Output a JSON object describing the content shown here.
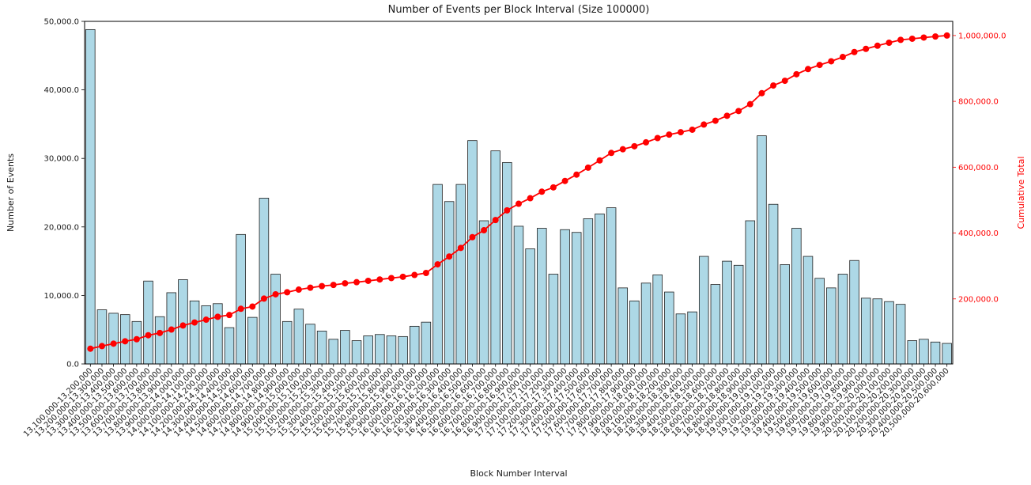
{
  "colors": {
    "bar_fill": "#ADD8E6",
    "bar_edge": "#1f1f1f",
    "line": "#FF0000",
    "right_axis": "#FF0000",
    "text": "#1a1a1a",
    "spine": "#000000",
    "background": "#ffffff"
  },
  "chart_data": {
    "type": "bar+line",
    "title": "Number of Events per Block Interval (Size 100000)",
    "xlabel": "Block Number Interval",
    "ylabel_left": "Number of Events",
    "ylabel_right": "Cumulative Total",
    "y_left_lim": [
      0,
      50000
    ],
    "y_right_lim": [
      0,
      1043000
    ],
    "grid": false,
    "legend": "none",
    "y_left_tick_labels": [
      "0.0",
      "10,000.0",
      "20,000.0",
      "30,000.0",
      "40,000.0",
      "50,000.0"
    ],
    "y_right_tick_labels": [
      "200,000.0",
      "400,000.0",
      "600,000.0",
      "800,000.0",
      "1,000,000.0"
    ],
    "categories": [
      "13,100,000-13,200,000",
      "13,200,000-13,300,000",
      "13,300,000-13,400,000",
      "13,400,000-13,500,000",
      "13,500,000-13,600,000",
      "13,600,000-13,700,000",
      "13,700,000-13,800,000",
      "13,800,000-13,900,000",
      "13,900,000-14,000,000",
      "14,000,000-14,100,000",
      "14,100,000-14,200,000",
      "14,200,000-14,300,000",
      "14,300,000-14,400,000",
      "14,400,000-14,500,000",
      "14,500,000-14,600,000",
      "14,600,000-14,700,000",
      "14,700,000-14,800,000",
      "14,800,000-14,900,000",
      "14,900,000-15,000,000",
      "15,000,000-15,100,000",
      "15,100,000-15,200,000",
      "15,200,000-15,300,000",
      "15,300,000-15,400,000",
      "15,400,000-15,500,000",
      "15,500,000-15,600,000",
      "15,600,000-15,700,000",
      "15,700,000-15,800,000",
      "15,800,000-15,900,000",
      "15,900,000-16,000,000",
      "16,000,000-16,100,000",
      "16,100,000-16,200,000",
      "16,200,000-16,300,000",
      "16,300,000-16,400,000",
      "16,400,000-16,500,000",
      "16,500,000-16,600,000",
      "16,600,000-16,700,000",
      "16,700,000-16,800,000",
      "16,800,000-16,900,000",
      "16,900,000-17,000,000",
      "17,000,000-17,100,000",
      "17,100,000-17,200,000",
      "17,200,000-17,300,000",
      "17,300,000-17,400,000",
      "17,400,000-17,500,000",
      "17,500,000-17,600,000",
      "17,600,000-17,700,000",
      "17,700,000-17,800,000",
      "17,800,000-17,900,000",
      "17,900,000-18,000,000",
      "18,000,000-18,100,000",
      "18,100,000-18,200,000",
      "18,200,000-18,300,000",
      "18,300,000-18,400,000",
      "18,400,000-18,500,000",
      "18,500,000-18,600,000",
      "18,600,000-18,700,000",
      "18,700,000-18,800,000",
      "18,800,000-18,900,000",
      "18,900,000-19,000,000",
      "19,000,000-19,100,000",
      "19,100,000-19,200,000",
      "19,200,000-19,300,000",
      "19,300,000-19,400,000",
      "19,400,000-19,500,000",
      "19,500,000-19,600,000",
      "19,600,000-19,700,000",
      "19,700,000-19,800,000",
      "19,800,000-19,900,000",
      "19,900,000-20,000,000",
      "20,000,000-20,100,000",
      "20,100,000-20,200,000",
      "20,200,000-20,300,000",
      "20,300,000-20,400,000",
      "20,400,000-20,500,000",
      "20,500,000-20,600,000"
    ],
    "series": [
      {
        "name": "Number of Events",
        "type": "bar",
        "axis": "left",
        "values": [
          48800,
          7900,
          7400,
          7200,
          6200,
          12100,
          6900,
          10400,
          12300,
          9200,
          8500,
          8800,
          5300,
          18900,
          6800,
          24200,
          13100,
          6200,
          8000,
          5800,
          4800,
          3600,
          4900,
          3400,
          4100,
          4300,
          4100,
          4000,
          5500,
          6100,
          26200,
          23700,
          26200,
          32600,
          20900,
          31100,
          29400,
          20100,
          16800,
          19800,
          13100,
          19600,
          19200,
          21200,
          21900,
          22800,
          11100,
          9200,
          11800,
          13000,
          10500,
          7300,
          7600,
          15700,
          11600,
          15000,
          14400,
          20900,
          33300,
          23300,
          14500,
          19800,
          15700,
          12500,
          11100,
          13100,
          15100,
          9600,
          9500,
          9100,
          8700,
          3400,
          3600,
          3200,
          3000
        ]
      },
      {
        "name": "Cumulative Total",
        "type": "line",
        "axis": "right",
        "values": [
          48800,
          56700,
          64100,
          71300,
          77500,
          89600,
          96500,
          106900,
          119200,
          128400,
          136900,
          145700,
          151000,
          169900,
          176700,
          200900,
          214000,
          220200,
          228200,
          234000,
          238800,
          242400,
          247300,
          250700,
          254800,
          259100,
          263200,
          267200,
          272700,
          278800,
          305000,
          328700,
          354900,
          387500,
          408400,
          439500,
          468900,
          489000,
          505800,
          525600,
          538700,
          558300,
          577500,
          598700,
          620600,
          643400,
          654500,
          663700,
          675500,
          688500,
          699000,
          706300,
          713900,
          729600,
          741200,
          756200,
          770600,
          791500,
          824800,
          848100,
          862600,
          882400,
          898100,
          910600,
          921700,
          934800,
          949900,
          959500,
          969000,
          978100,
          986800,
          990200,
          993800,
          997000,
          1000000
        ]
      }
    ]
  }
}
